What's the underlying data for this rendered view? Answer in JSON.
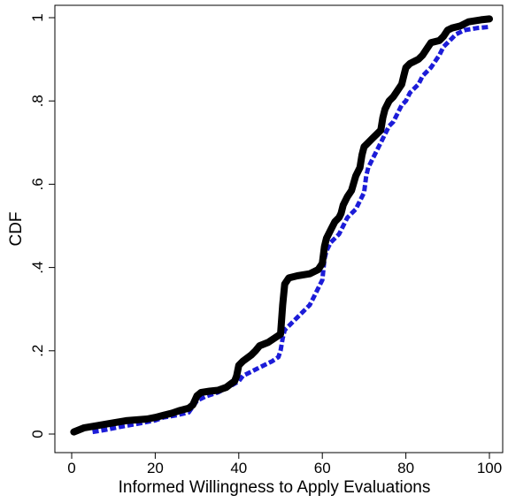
{
  "chart_data": {
    "type": "line",
    "title": "",
    "xlabel": "Informed Willingness to Apply Evaluations",
    "ylabel": "CDF",
    "xlim": [
      0,
      100
    ],
    "ylim": [
      0,
      1
    ],
    "x_ticks": [
      {
        "value": 0,
        "label": "0"
      },
      {
        "value": 20,
        "label": "20"
      },
      {
        "value": 40,
        "label": "40"
      },
      {
        "value": 60,
        "label": "60"
      },
      {
        "value": 80,
        "label": "80"
      },
      {
        "value": 100,
        "label": "100"
      }
    ],
    "y_ticks": [
      {
        "value": 0,
        "label": "0"
      },
      {
        "value": 0.2,
        "label": ".2"
      },
      {
        "value": 0.4,
        "label": ".4"
      },
      {
        "value": 0.6,
        "label": ".6"
      },
      {
        "value": 0.8,
        "label": ".8"
      },
      {
        "value": 1,
        "label": "1"
      }
    ],
    "grid": false,
    "legend": "none",
    "series": [
      {
        "color": "#000000",
        "style": "solid",
        "points": [
          [
            0.5,
            0.005
          ],
          [
            3,
            0.015
          ],
          [
            6,
            0.02
          ],
          [
            10,
            0.027
          ],
          [
            13,
            0.032
          ],
          [
            18,
            0.036
          ],
          [
            20,
            0.04
          ],
          [
            22,
            0.045
          ],
          [
            24,
            0.05
          ],
          [
            26,
            0.057
          ],
          [
            28,
            0.062
          ],
          [
            29,
            0.07
          ],
          [
            30,
            0.092
          ],
          [
            31,
            0.1
          ],
          [
            33,
            0.103
          ],
          [
            35,
            0.105
          ],
          [
            37,
            0.112
          ],
          [
            38,
            0.12
          ],
          [
            39,
            0.127
          ],
          [
            39.5,
            0.14
          ],
          [
            40,
            0.165
          ],
          [
            41,
            0.175
          ],
          [
            43,
            0.19
          ],
          [
            44,
            0.2
          ],
          [
            45,
            0.212
          ],
          [
            47,
            0.22
          ],
          [
            48.5,
            0.23
          ],
          [
            50,
            0.24
          ],
          [
            50.5,
            0.31
          ],
          [
            51,
            0.36
          ],
          [
            52,
            0.375
          ],
          [
            54,
            0.38
          ],
          [
            57,
            0.385
          ],
          [
            58,
            0.39
          ],
          [
            59,
            0.395
          ],
          [
            60,
            0.41
          ],
          [
            60.5,
            0.45
          ],
          [
            61,
            0.47
          ],
          [
            62,
            0.49
          ],
          [
            63,
            0.51
          ],
          [
            64,
            0.52
          ],
          [
            64.5,
            0.53
          ],
          [
            65,
            0.55
          ],
          [
            66,
            0.57
          ],
          [
            67,
            0.585
          ],
          [
            68,
            0.62
          ],
          [
            69,
            0.64
          ],
          [
            69.5,
            0.67
          ],
          [
            70,
            0.69
          ],
          [
            71,
            0.7
          ],
          [
            72,
            0.71
          ],
          [
            73,
            0.72
          ],
          [
            74,
            0.73
          ],
          [
            74.5,
            0.76
          ],
          [
            75,
            0.78
          ],
          [
            76,
            0.8
          ],
          [
            77,
            0.81
          ],
          [
            78,
            0.825
          ],
          [
            79,
            0.84
          ],
          [
            79.5,
            0.86
          ],
          [
            80,
            0.88
          ],
          [
            81,
            0.89
          ],
          [
            82,
            0.895
          ],
          [
            83,
            0.9
          ],
          [
            84,
            0.91
          ],
          [
            85,
            0.925
          ],
          [
            86,
            0.94
          ],
          [
            88,
            0.945
          ],
          [
            89,
            0.955
          ],
          [
            90,
            0.97
          ],
          [
            91,
            0.975
          ],
          [
            93,
            0.98
          ],
          [
            95,
            0.99
          ],
          [
            98,
            0.995
          ],
          [
            100,
            0.997
          ]
        ]
      },
      {
        "color": "#1c1cd8",
        "style": "dashed",
        "points": [
          [
            5,
            0.005
          ],
          [
            8,
            0.01
          ],
          [
            12,
            0.018
          ],
          [
            16,
            0.025
          ],
          [
            20,
            0.033
          ],
          [
            22,
            0.04
          ],
          [
            25,
            0.045
          ],
          [
            28,
            0.052
          ],
          [
            30,
            0.08
          ],
          [
            32,
            0.09
          ],
          [
            35,
            0.1
          ],
          [
            38,
            0.115
          ],
          [
            40,
            0.127
          ],
          [
            41,
            0.14
          ],
          [
            43,
            0.15
          ],
          [
            45,
            0.16
          ],
          [
            48,
            0.175
          ],
          [
            49.5,
            0.185
          ],
          [
            50,
            0.2
          ],
          [
            50.5,
            0.23
          ],
          [
            51,
            0.25
          ],
          [
            53,
            0.27
          ],
          [
            55,
            0.29
          ],
          [
            57,
            0.31
          ],
          [
            58,
            0.33
          ],
          [
            59,
            0.35
          ],
          [
            60,
            0.37
          ],
          [
            60.5,
            0.42
          ],
          [
            61,
            0.44
          ],
          [
            62,
            0.46
          ],
          [
            63,
            0.47
          ],
          [
            64,
            0.48
          ],
          [
            65,
            0.5
          ],
          [
            66,
            0.52
          ],
          [
            67,
            0.53
          ],
          [
            68,
            0.54
          ],
          [
            69,
            0.56
          ],
          [
            70,
            0.58
          ],
          [
            70.5,
            0.62
          ],
          [
            71,
            0.64
          ],
          [
            72,
            0.66
          ],
          [
            73,
            0.68
          ],
          [
            74,
            0.7
          ],
          [
            75,
            0.72
          ],
          [
            76,
            0.74
          ],
          [
            77,
            0.75
          ],
          [
            78,
            0.77
          ],
          [
            79,
            0.79
          ],
          [
            80,
            0.8
          ],
          [
            81,
            0.82
          ],
          [
            82,
            0.83
          ],
          [
            83,
            0.84
          ],
          [
            84,
            0.86
          ],
          [
            85,
            0.87
          ],
          [
            86,
            0.88
          ],
          [
            87,
            0.895
          ],
          [
            88,
            0.91
          ],
          [
            89,
            0.93
          ],
          [
            90,
            0.94
          ],
          [
            91,
            0.95
          ],
          [
            92,
            0.96
          ],
          [
            94,
            0.97
          ],
          [
            97,
            0.975
          ],
          [
            100,
            0.978
          ]
        ]
      }
    ]
  }
}
